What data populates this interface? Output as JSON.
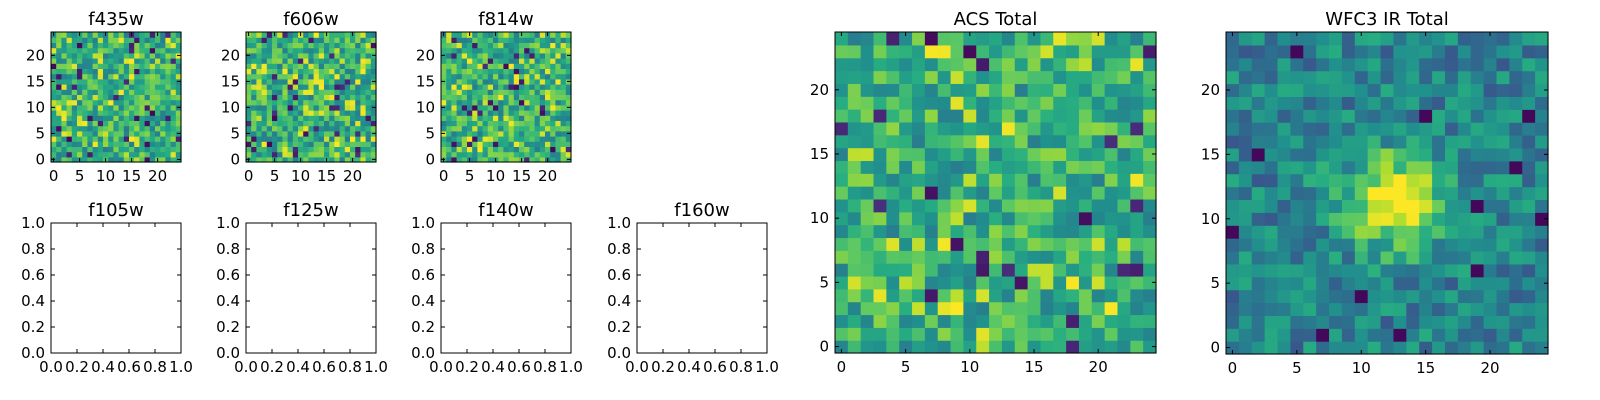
{
  "chart_data": [
    {
      "type": "heatmap",
      "title": "f435w",
      "xticks": [
        "0",
        "5",
        "10",
        "15",
        "20"
      ],
      "yticks": [
        "0",
        "5",
        "10",
        "15",
        "20"
      ],
      "xlim": [
        -0.5,
        24.5
      ],
      "ylim": [
        -0.5,
        24.5
      ],
      "grid": false,
      "colormap": "viridis",
      "pattern": "noise",
      "seed": 11,
      "dark_fraction": 0.05,
      "bright_fraction": 0.07
    },
    {
      "type": "heatmap",
      "title": "f606w",
      "xticks": [
        "0",
        "5",
        "10",
        "15",
        "20"
      ],
      "yticks": [
        "0",
        "5",
        "10",
        "15",
        "20"
      ],
      "xlim": [
        -0.5,
        24.5
      ],
      "ylim": [
        -0.5,
        24.5
      ],
      "grid": false,
      "colormap": "viridis",
      "pattern": "noise",
      "seed": 23,
      "dark_fraction": 0.06,
      "bright_fraction": 0.12
    },
    {
      "type": "heatmap",
      "title": "f814w",
      "xticks": [
        "0",
        "5",
        "10",
        "15",
        "20"
      ],
      "yticks": [
        "0",
        "5",
        "10",
        "15",
        "20"
      ],
      "xlim": [
        -0.5,
        24.5
      ],
      "ylim": [
        -0.5,
        24.5
      ],
      "grid": false,
      "colormap": "viridis",
      "pattern": "noise",
      "seed": 37,
      "dark_fraction": 0.05,
      "bright_fraction": 0.1
    },
    {
      "type": "scatter",
      "title": "f105w",
      "xticks": [
        "0.0",
        "0.2",
        "0.4",
        "0.6",
        "0.8",
        "1.0"
      ],
      "yticks": [
        "0.0",
        "0.2",
        "0.4",
        "0.6",
        "0.8",
        "1.0"
      ],
      "xlim": [
        0,
        1
      ],
      "ylim": [
        0,
        1
      ],
      "grid": false,
      "values": []
    },
    {
      "type": "scatter",
      "title": "f125w",
      "xticks": [
        "0.0",
        "0.2",
        "0.4",
        "0.6",
        "0.8",
        "1.0"
      ],
      "yticks": [
        "0.0",
        "0.2",
        "0.4",
        "0.6",
        "0.8",
        "1.0"
      ],
      "xlim": [
        0,
        1
      ],
      "ylim": [
        0,
        1
      ],
      "grid": false,
      "values": []
    },
    {
      "type": "scatter",
      "title": "f140w",
      "xticks": [
        "0.0",
        "0.2",
        "0.4",
        "0.6",
        "0.8",
        "1.0"
      ],
      "yticks": [
        "0.0",
        "0.2",
        "0.4",
        "0.6",
        "0.8",
        "1.0"
      ],
      "xlim": [
        0,
        1
      ],
      "ylim": [
        0,
        1
      ],
      "grid": false,
      "values": []
    },
    {
      "type": "scatter",
      "title": "f160w",
      "xticks": [
        "0.0",
        "0.2",
        "0.4",
        "0.6",
        "0.8",
        "1.0"
      ],
      "yticks": [
        "0.0",
        "0.2",
        "0.4",
        "0.6",
        "0.8",
        "1.0"
      ],
      "xlim": [
        0,
        1
      ],
      "ylim": [
        0,
        1
      ],
      "grid": false,
      "values": []
    },
    {
      "type": "heatmap",
      "title": "ACS Total",
      "xticks": [
        "0",
        "5",
        "10",
        "15",
        "20"
      ],
      "yticks": [
        "0",
        "5",
        "10",
        "15",
        "20"
      ],
      "xlim": [
        -0.5,
        24.5
      ],
      "ylim": [
        -0.5,
        24.5
      ],
      "grid": false,
      "colormap": "viridis",
      "pattern": "noise",
      "seed": 53,
      "dark_fraction": 0.04,
      "bright_fraction": 0.08
    },
    {
      "type": "heatmap",
      "title": "WFC3 IR Total",
      "xticks": [
        "0",
        "5",
        "10",
        "15",
        "20"
      ],
      "yticks": [
        "0",
        "5",
        "10",
        "15",
        "20"
      ],
      "xlim": [
        -0.5,
        24.5
      ],
      "ylim": [
        -0.5,
        24.5
      ],
      "grid": false,
      "colormap": "viridis",
      "pattern": "source",
      "seed": 71,
      "source_center": [
        12.5,
        11.5
      ],
      "source_radius": 2.6
    }
  ]
}
